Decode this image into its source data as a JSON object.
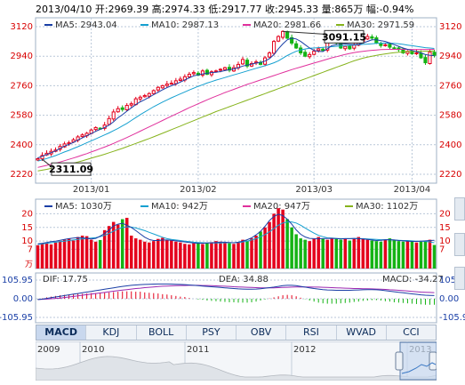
{
  "header": {
    "text": "2013/04/10 开:2969.39 高:2974.33 低:2917.77 收:2945.33 量:865万 幅:-0.94%"
  },
  "colors": {
    "up": "#e4001c",
    "down": "#14b314",
    "ma5": "#1a3fa6",
    "ma10": "#15a0d0",
    "ma20": "#e0309c",
    "ma30": "#86b31c",
    "grid": "#b9c7d8",
    "axis_red": "#d80000"
  },
  "chart_data": [
    {
      "type": "candlestick",
      "name": "price",
      "legend": [
        {
          "label": "MA5: 2943.04",
          "color": "#1a3fa6"
        },
        {
          "label": "MA10: 2987.13",
          "color": "#15a0d0"
        },
        {
          "label": "MA20: 2981.66",
          "color": "#e0309c"
        },
        {
          "label": "MA30: 2971.59",
          "color": "#86b31c"
        }
      ],
      "yticks": [
        "3120",
        "2940",
        "2760",
        "2580",
        "2400",
        "2220"
      ],
      "ylim": [
        2220,
        3120
      ],
      "xticks": [
        "2013/01",
        "2013/02",
        "2013/03",
        "2013/04"
      ],
      "annotations": [
        {
          "label": "2311.09",
          "value": 2311.09
        },
        {
          "label": "3091.15",
          "value": 3091.15
        }
      ],
      "close": [
        2315,
        2335,
        2348,
        2360,
        2368,
        2390,
        2405,
        2412,
        2430,
        2448,
        2460,
        2470,
        2490,
        2505,
        2500,
        2520,
        2560,
        2600,
        2620,
        2615,
        2640,
        2650,
        2680,
        2690,
        2700,
        2712,
        2730,
        2750,
        2760,
        2770,
        2775,
        2790,
        2800,
        2815,
        2830,
        2840,
        2825,
        2850,
        2830,
        2845,
        2850,
        2860,
        2870,
        2855,
        2870,
        2890,
        2920,
        2880,
        2895,
        2905,
        2890,
        2930,
        2960,
        3030,
        3060,
        3091,
        3050,
        3020,
        2990,
        2960,
        2940,
        2950,
        2970,
        2985,
        2975,
        3040,
        3070,
        3020,
        2990,
        3000,
        2985,
        3010,
        3030,
        3040,
        3060,
        3050,
        3020,
        3005,
        3010,
        2995,
        2990,
        2980,
        2960,
        2970,
        2955,
        2960,
        2930,
        2900,
        2965,
        2945
      ],
      "ma5": [
        2320,
        2330,
        2340,
        2352,
        2362,
        2378,
        2392,
        2402,
        2414,
        2428,
        2442,
        2455,
        2468,
        2482,
        2494,
        2505,
        2520,
        2540,
        2565,
        2583,
        2605,
        2625,
        2645,
        2662,
        2675,
        2690,
        2705,
        2720,
        2735,
        2748,
        2760,
        2770,
        2782,
        2795,
        2808,
        2820,
        2826,
        2832,
        2836,
        2840,
        2842,
        2846,
        2852,
        2858,
        2862,
        2870,
        2880,
        2885,
        2892,
        2898,
        2902,
        2910,
        2925,
        2950,
        2985,
        3015,
        3040,
        3050,
        3045,
        3030,
        3010,
        2990,
        2975,
        2970,
        2968,
        2985,
        3005,
        3010,
        3012,
        3015,
        3012,
        3010,
        3012,
        3020,
        3030,
        3040,
        3040,
        3035,
        3030,
        3020,
        3010,
        3000,
        2990,
        2982,
        2975,
        2968,
        2960,
        2950,
        2945,
        2943
      ],
      "ma10": [
        2300,
        2308,
        2316,
        2325,
        2334,
        2345,
        2356,
        2366,
        2377,
        2388,
        2400,
        2412,
        2424,
        2436,
        2448,
        2460,
        2472,
        2486,
        2500,
        2515,
        2530,
        2548,
        2566,
        2584,
        2600,
        2616,
        2632,
        2646,
        2660,
        2673,
        2686,
        2698,
        2710,
        2722,
        2734,
        2745,
        2756,
        2766,
        2776,
        2785,
        2794,
        2802,
        2810,
        2818,
        2826,
        2834,
        2842,
        2850,
        2858,
        2866,
        2874,
        2882,
        2890,
        2900,
        2912,
        2928,
        2944,
        2958,
        2970,
        2978,
        2984,
        2988,
        2990,
        2992,
        2994,
        2996,
        2998,
        3000,
        3002,
        3004,
        3006,
        3008,
        3010,
        3012,
        3014,
        3016,
        3018,
        3019,
        3020,
        3019,
        3018,
        3016,
        3012,
        3008,
        3004,
        3000,
        2996,
        2992,
        2990,
        2987
      ],
      "ma20": [
        2262,
        2268,
        2274,
        2281,
        2288,
        2295,
        2303,
        2311,
        2319,
        2328,
        2337,
        2346,
        2356,
        2366,
        2376,
        2386,
        2397,
        2408,
        2420,
        2432,
        2444,
        2457,
        2470,
        2483,
        2496,
        2509,
        2522,
        2535,
        2548,
        2561,
        2574,
        2587,
        2600,
        2613,
        2626,
        2638,
        2650,
        2662,
        2674,
        2685,
        2696,
        2707,
        2718,
        2728,
        2738,
        2748,
        2758,
        2768,
        2777,
        2786,
        2795,
        2804,
        2813,
        2822,
        2831,
        2840,
        2849,
        2858,
        2866,
        2874,
        2882,
        2890,
        2898,
        2906,
        2914,
        2922,
        2930,
        2937,
        2944,
        2951,
        2957,
        2962,
        2966,
        2970,
        2973,
        2976,
        2978,
        2980,
        2981,
        2982,
        2982,
        2982,
        2982,
        2982,
        2981,
        2981,
        2981,
        2981,
        2981,
        2982
      ],
      "ma30": [
        2240,
        2245,
        2250,
        2256,
        2262,
        2268,
        2274,
        2281,
        2288,
        2295,
        2302,
        2310,
        2318,
        2326,
        2334,
        2342,
        2351,
        2360,
        2369,
        2378,
        2388,
        2398,
        2408,
        2418,
        2428,
        2438,
        2448,
        2459,
        2470,
        2481,
        2492,
        2503,
        2514,
        2525,
        2536,
        2547,
        2558,
        2569,
        2580,
        2591,
        2602,
        2612,
        2622,
        2632,
        2642,
        2652,
        2662,
        2672,
        2682,
        2692,
        2702,
        2712,
        2722,
        2732,
        2742,
        2752,
        2762,
        2772,
        2782,
        2792,
        2802,
        2812,
        2822,
        2832,
        2842,
        2852,
        2862,
        2872,
        2882,
        2892,
        2902,
        2912,
        2920,
        2928,
        2934,
        2940,
        2945,
        2950,
        2954,
        2958,
        2961,
        2964,
        2966,
        2968,
        2969,
        2970,
        2970,
        2971,
        2971,
        2972
      ]
    },
    {
      "type": "bar",
      "name": "volume",
      "legend": [
        {
          "label": "MA5: 1030万",
          "color": "#1a3fa6"
        },
        {
          "label": "MA10: 942万",
          "color": "#15a0d0"
        },
        {
          "label": "MA20: 947万",
          "color": "#e0309c"
        },
        {
          "label": "MA30: 1102万",
          "color": "#86b31c"
        }
      ],
      "yticks": [
        "20",
        "15",
        "10",
        "7"
      ],
      "unit_label": "万",
      "ylim": [
        0,
        24
      ],
      "values": [
        8.5,
        9,
        9.2,
        8.8,
        9.5,
        10,
        10.5,
        11,
        10.2,
        11.5,
        12,
        11.8,
        10.5,
        9.8,
        10.4,
        14,
        15.5,
        17,
        16,
        18,
        18.5,
        12,
        11,
        10.5,
        9.8,
        9.5,
        10,
        10.8,
        11.2,
        10.5,
        10.2,
        9.8,
        9.5,
        9,
        8.8,
        9.2,
        9.5,
        8.9,
        9.3,
        9.6,
        10,
        9.8,
        9.5,
        9.2,
        9,
        9.4,
        10.5,
        10.2,
        11,
        12,
        13.5,
        15,
        17,
        20,
        22,
        21.5,
        18,
        15,
        12.5,
        11,
        10.5,
        10,
        10.8,
        11.5,
        11,
        10.5,
        11.2,
        10.8,
        10.5,
        11,
        10.2,
        10.8,
        11.5,
        11,
        10.5,
        10.2,
        10,
        9.8,
        10.5,
        11,
        10.5,
        10,
        9.8,
        10.2,
        10,
        9.5,
        9.8,
        10.2,
        10.5,
        8.6
      ],
      "ma5": [
        9,
        9.2,
        9.5,
        9.8,
        10,
        10.3,
        10.6,
        10.9,
        11.1,
        11.3,
        11.2,
        11,
        10.8,
        11,
        11.8,
        12.8,
        14,
        15.5,
        16.2,
        16.5,
        15.8,
        15,
        13.8,
        12.6,
        11.4,
        10.6,
        10.2,
        10.2,
        10.4,
        10.4,
        10.3,
        10.1,
        9.9,
        9.7,
        9.5,
        9.3,
        9.2,
        9.2,
        9.3,
        9.4,
        9.5,
        9.6,
        9.6,
        9.5,
        9.4,
        9.6,
        10,
        10.5,
        11.2,
        12.3,
        13.6,
        15.4,
        17.5,
        19,
        19.8,
        19.3,
        18,
        16.2,
        14.1,
        12.5,
        11.5,
        11,
        10.9,
        10.9,
        10.9,
        11,
        11,
        10.9,
        10.8,
        10.9,
        10.9,
        11,
        10.9,
        10.8,
        10.6,
        10.4,
        10.2,
        10.3,
        10.5,
        10.5,
        10.4,
        10.2,
        10.1,
        10,
        9.9,
        9.9,
        10,
        10.1,
        10.2,
        10.3
      ],
      "ma10": [
        8.8,
        9,
        9.2,
        9.4,
        9.6,
        9.8,
        10,
        10.2,
        10.4,
        10.6,
        10.8,
        11,
        11.1,
        11.3,
        11.6,
        12.1,
        12.8,
        13.6,
        14.4,
        15,
        15.2,
        15.1,
        14.8,
        14.3,
        13.8,
        13.2,
        12.6,
        12,
        11.4,
        10.9,
        10.6,
        10.4,
        10.2,
        10,
        9.8,
        9.6,
        9.5,
        9.4,
        9.3,
        9.3,
        9.3,
        9.3,
        9.4,
        9.4,
        9.4,
        9.5,
        9.7,
        10,
        10.4,
        10.9,
        11.6,
        12.4,
        13.4,
        14.6,
        15.8,
        16.6,
        17,
        17,
        16.6,
        15.8,
        14.8,
        13.8,
        12.9,
        12.1,
        11.6,
        11.2,
        11.1,
        11,
        10.9,
        10.9,
        10.9,
        10.9,
        10.9,
        10.9,
        10.8,
        10.7,
        10.6,
        10.5,
        10.5,
        10.5,
        10.4,
        10.3,
        10.2,
        10.2,
        10.1,
        10,
        10,
        9.9,
        9.7,
        9.4
      ]
    },
    {
      "type": "line",
      "name": "macd",
      "legend": [
        {
          "label": "DIF: 17.75",
          "color": "#1a3fa6"
        },
        {
          "label": "DEA: 34.88",
          "color": "#9c27b0"
        },
        {
          "label": "MACD: -34.27",
          "color": "#d80000"
        }
      ],
      "yticks": [
        "105.95",
        "0.00",
        "-105.95"
      ],
      "ylim": [
        -105.95,
        105.95
      ],
      "dif": [
        -5,
        -2,
        2,
        6,
        10,
        14,
        18,
        22,
        26,
        30,
        34,
        38,
        42,
        46,
        50,
        54,
        58,
        62,
        66,
        70,
        73,
        76,
        78,
        80,
        81,
        82,
        83,
        84,
        84,
        84,
        83,
        82,
        81,
        80,
        78,
        76,
        74,
        72,
        70,
        68,
        66,
        64,
        62,
        60,
        58,
        56,
        55,
        54,
        54,
        55,
        57,
        60,
        63,
        66,
        70,
        74,
        76,
        76,
        74,
        70,
        66,
        62,
        58,
        55,
        52,
        50,
        49,
        48,
        48,
        48,
        48,
        49,
        50,
        51,
        52,
        52,
        51,
        49,
        46,
        43,
        40,
        37,
        34,
        31,
        28,
        25,
        22,
        20,
        19,
        18
      ],
      "dea": [
        -4,
        -3,
        -2,
        0,
        2,
        4,
        7,
        10,
        13,
        16,
        20,
        23,
        26,
        30,
        33,
        36,
        40,
        43,
        46,
        49,
        52,
        55,
        58,
        60,
        63,
        65,
        67,
        69,
        71,
        72,
        73,
        74,
        75,
        75,
        76,
        76,
        76,
        75,
        75,
        74,
        73,
        72,
        71,
        70,
        68,
        67,
        66,
        65,
        64,
        63,
        62,
        62,
        62,
        62,
        63,
        64,
        65,
        66,
        67,
        67,
        67,
        67,
        66,
        66,
        65,
        64,
        63,
        62,
        61,
        60,
        59,
        58,
        58,
        57,
        57,
        56,
        55,
        54,
        53,
        51,
        50,
        48,
        46,
        44,
        42,
        40,
        38,
        37,
        36,
        35
      ]
    },
    {
      "type": "area",
      "name": "navigator",
      "xticks": [
        "2009",
        "2010",
        "2011",
        "2012",
        "2013"
      ]
    }
  ],
  "tabs": [
    "MACD",
    "KDJ",
    "BOLL",
    "PSY",
    "OBV",
    "RSI",
    "WVAD",
    "CCI"
  ],
  "active_tab": "MACD"
}
